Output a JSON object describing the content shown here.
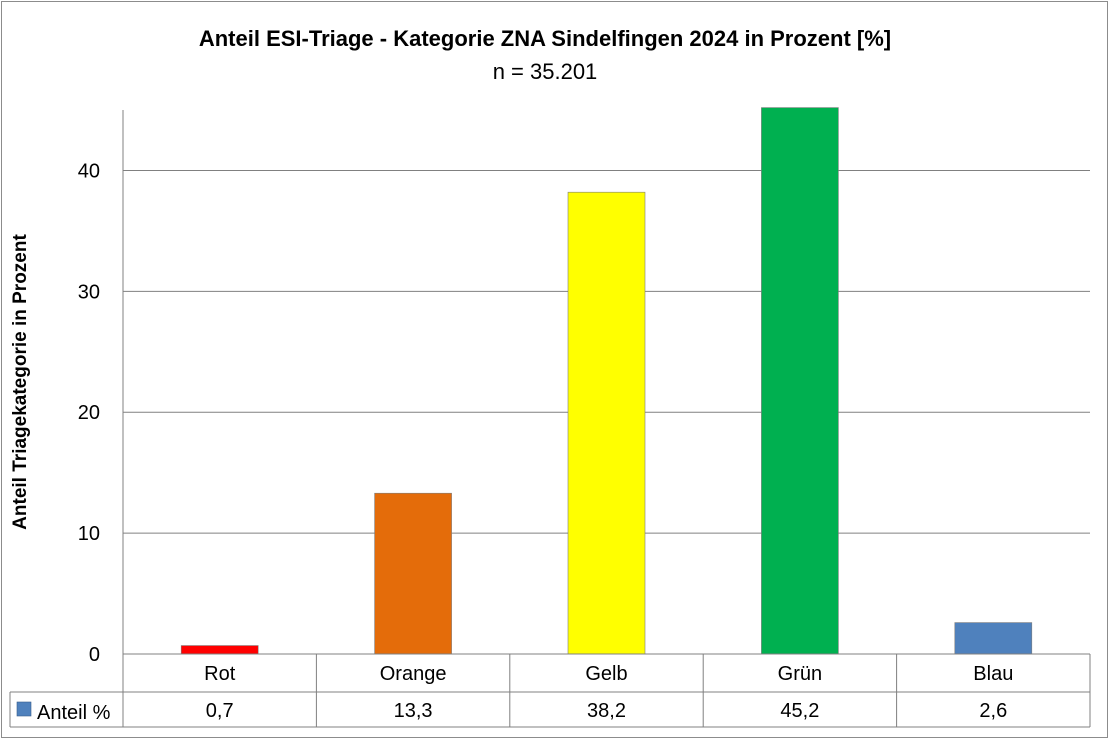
{
  "chart_data": {
    "type": "bar",
    "title": "Anteil ESI-Triage - Kategorie ZNA Sindelfingen 2024 in Prozent [%]",
    "subtitle": "n = 35.201",
    "ylabel": "Anteil Triagekategorie in Prozent",
    "ylim": [
      0,
      45
    ],
    "yticks": [
      0,
      10,
      20,
      30,
      40
    ],
    "grid": true,
    "categories": [
      "Rot",
      "Orange",
      "Gelb",
      "Grün",
      "Blau"
    ],
    "series": [
      {
        "name": "Anteil %",
        "values": [
          0.7,
          13.3,
          38.2,
          45.2,
          2.6
        ],
        "value_labels": [
          "0,7",
          "13,3",
          "38,2",
          "45,2",
          "2,6"
        ],
        "colors": [
          "#ff0000",
          "#e46c0a",
          "#ffff00",
          "#00b050",
          "#4f81bd"
        ],
        "legend_color": "#4f81bd"
      }
    ],
    "legend": "data-table"
  }
}
